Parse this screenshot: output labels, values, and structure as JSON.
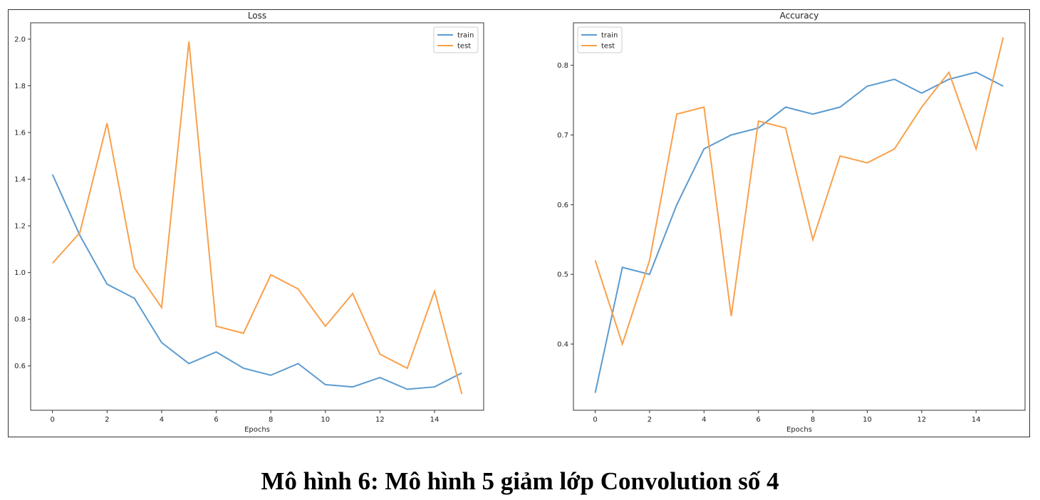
{
  "caption": "Mô hình 6: Mô hình 5 giảm lớp Convolution số 4",
  "colors": {
    "train": "#5b9bd0",
    "test": "#f9a04b"
  },
  "chart_data": [
    {
      "type": "line",
      "title": "Loss",
      "xlabel": "Epochs",
      "ylabel": "",
      "x": [
        0,
        1,
        2,
        3,
        4,
        5,
        6,
        7,
        8,
        9,
        10,
        11,
        12,
        13,
        14,
        15
      ],
      "xticks": [
        0,
        2,
        4,
        6,
        8,
        10,
        12,
        14
      ],
      "yticks": [
        0.6,
        0.8,
        1.0,
        1.2,
        1.4,
        1.6,
        1.8,
        2.0
      ],
      "ytick_labels": [
        "0.6",
        "0.8",
        "1.0",
        "1.2",
        "1.4",
        "1.6",
        "1.8",
        "2.0"
      ],
      "xlim": [
        -0.8,
        15.8
      ],
      "ylim": [
        0.41,
        2.07
      ],
      "legend_position": "top-right",
      "grid": false,
      "series": [
        {
          "name": "train",
          "values": [
            1.42,
            1.16,
            0.95,
            0.89,
            0.7,
            0.61,
            0.66,
            0.59,
            0.56,
            0.61,
            0.52,
            0.51,
            0.55,
            0.5,
            0.51,
            0.57
          ]
        },
        {
          "name": "test",
          "values": [
            1.04,
            1.17,
            1.64,
            1.02,
            0.85,
            1.99,
            0.77,
            0.74,
            0.99,
            0.93,
            0.77,
            0.91,
            0.65,
            0.59,
            0.92,
            0.48
          ]
        }
      ]
    },
    {
      "type": "line",
      "title": "Accuracy",
      "xlabel": "Epochs",
      "ylabel": "",
      "x": [
        0,
        1,
        2,
        3,
        4,
        5,
        6,
        7,
        8,
        9,
        10,
        11,
        12,
        13,
        14,
        15
      ],
      "xticks": [
        0,
        2,
        4,
        6,
        8,
        10,
        12,
        14
      ],
      "yticks": [
        0.4,
        0.5,
        0.6,
        0.7,
        0.8
      ],
      "ytick_labels": [
        "0.4",
        "0.5",
        "0.6",
        "0.7",
        "0.8"
      ],
      "xlim": [
        -0.8,
        15.8
      ],
      "ylim": [
        0.305,
        0.861
      ],
      "legend_position": "top-left",
      "grid": false,
      "series": [
        {
          "name": "train",
          "values": [
            0.33,
            0.51,
            0.5,
            0.6,
            0.68,
            0.7,
            0.71,
            0.74,
            0.73,
            0.74,
            0.77,
            0.78,
            0.76,
            0.78,
            0.79,
            0.77
          ]
        },
        {
          "name": "test",
          "values": [
            0.52,
            0.4,
            0.52,
            0.73,
            0.74,
            0.44,
            0.72,
            0.71,
            0.55,
            0.67,
            0.66,
            0.68,
            0.74,
            0.79,
            0.68,
            0.84
          ]
        }
      ]
    }
  ]
}
